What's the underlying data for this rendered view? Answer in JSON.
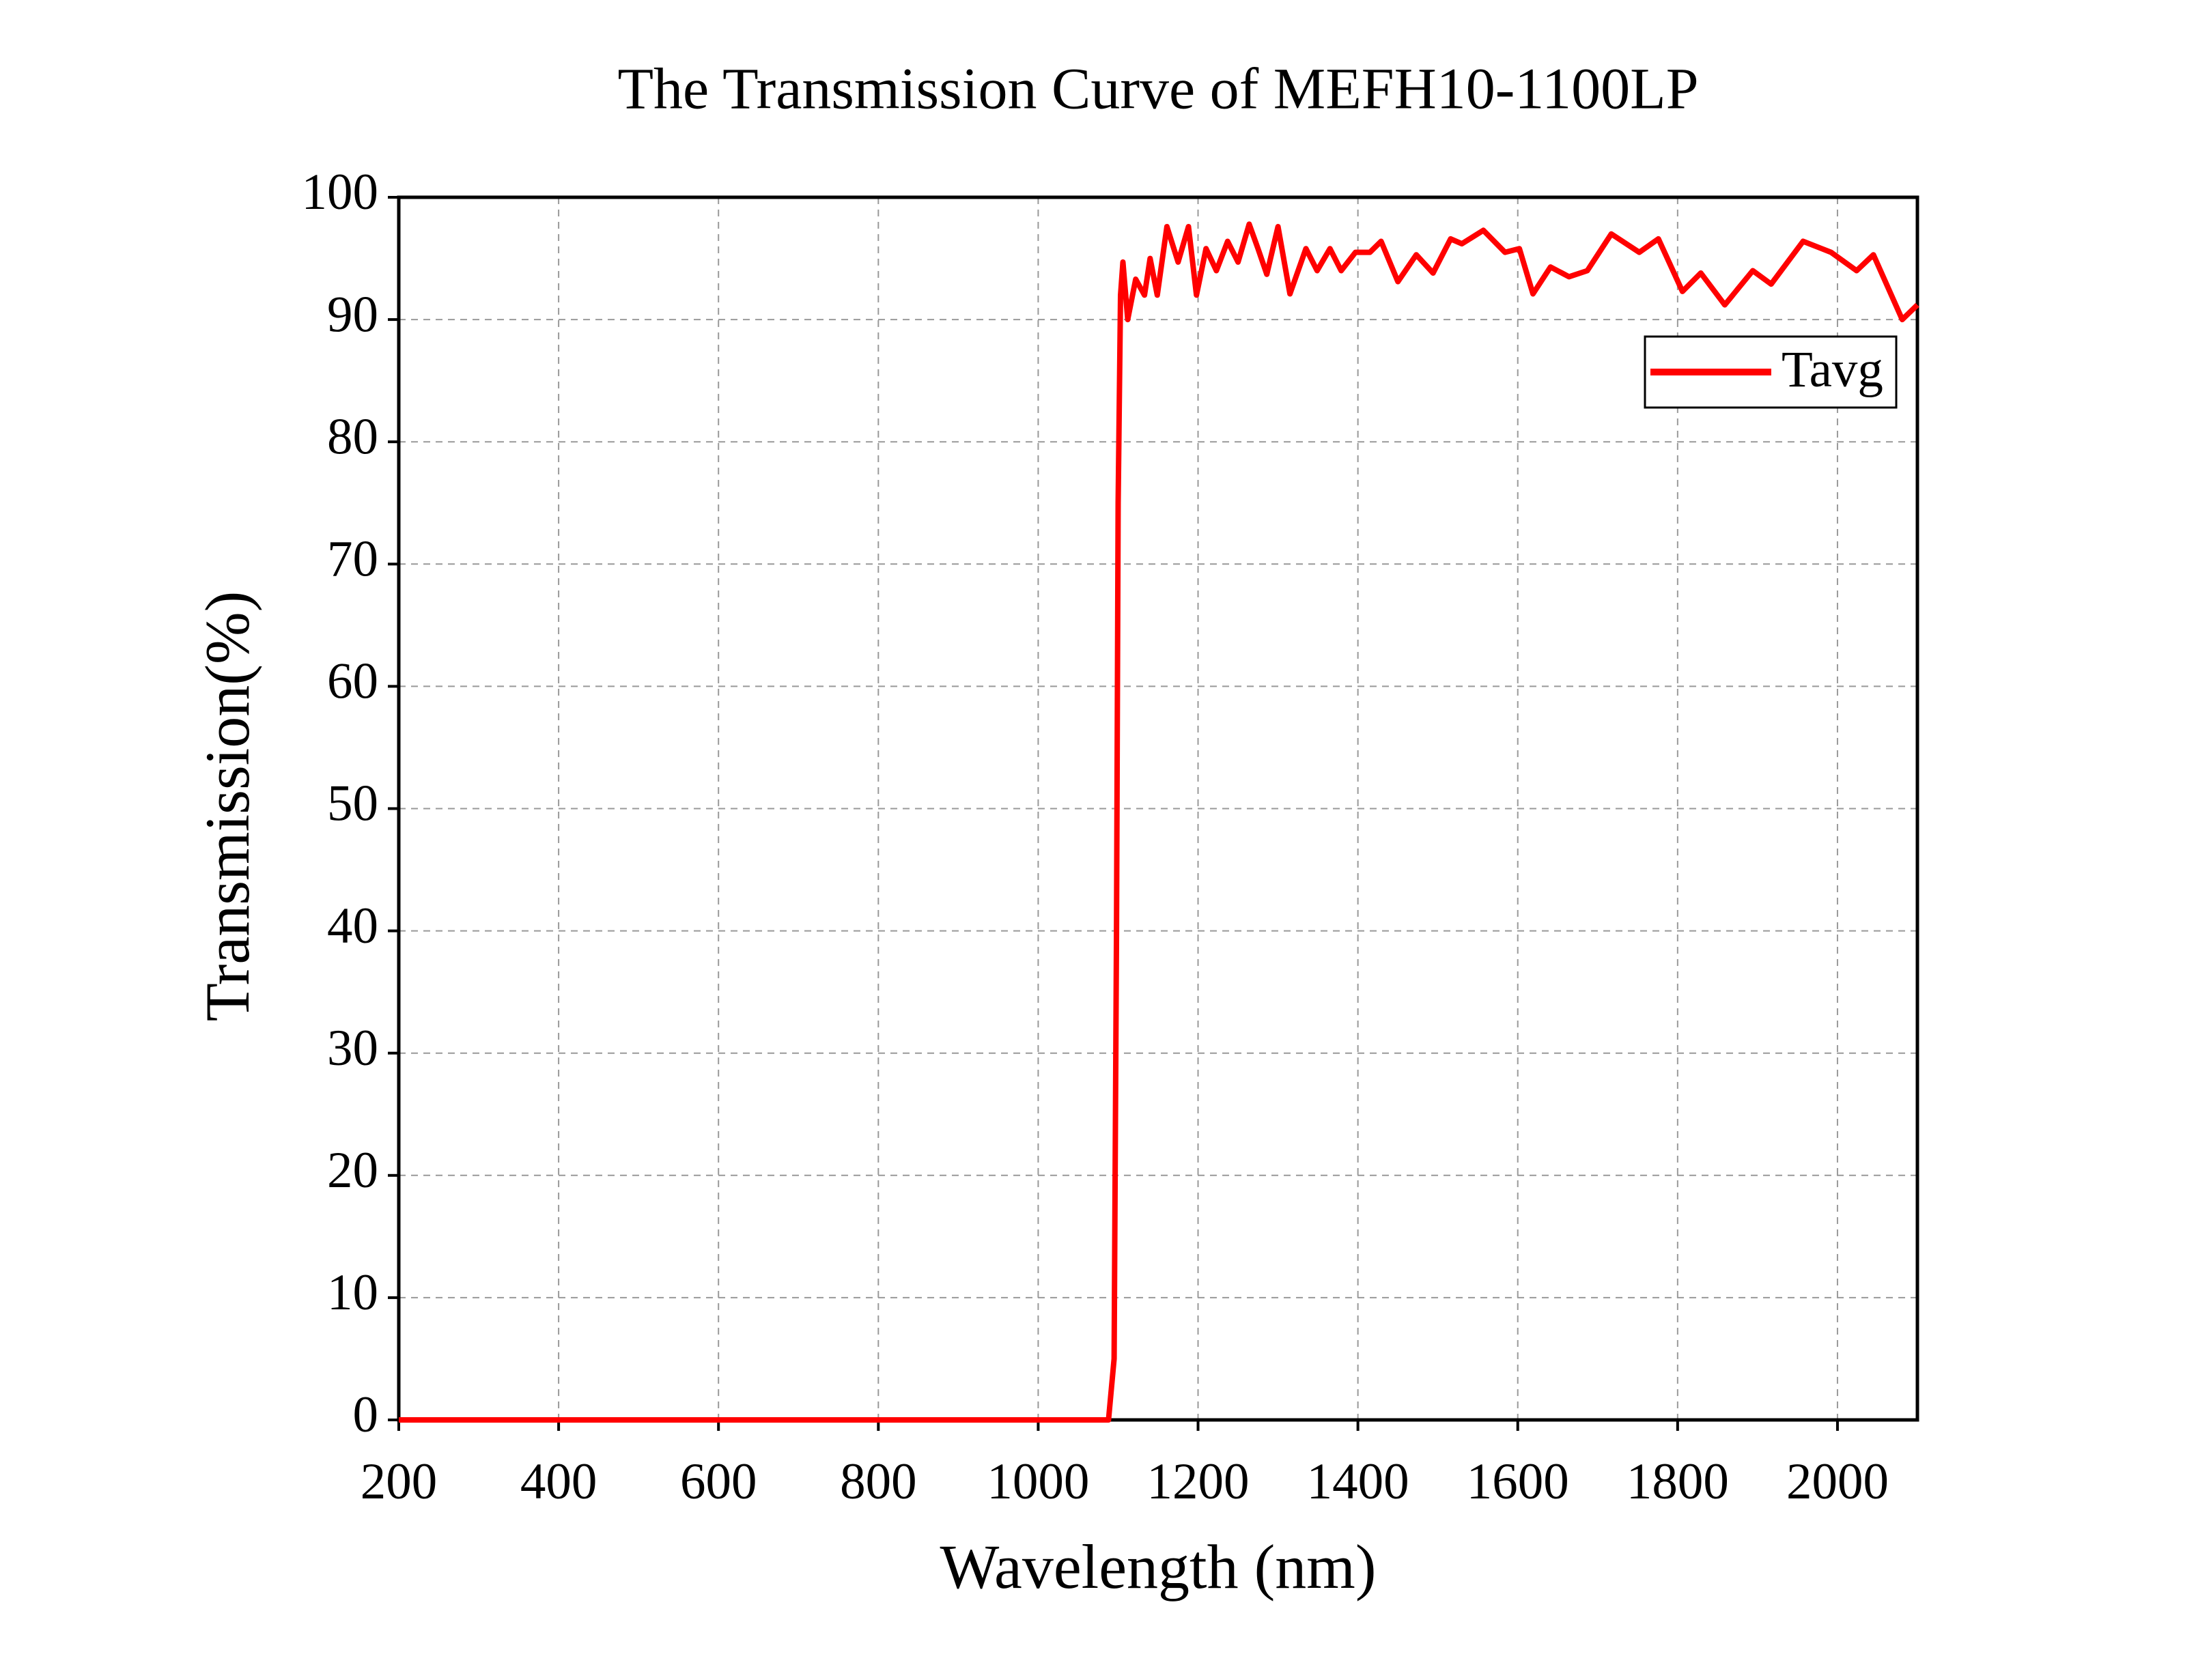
{
  "chart_data": {
    "type": "line",
    "title": "The Transmission Curve of MEFH10-1100LP",
    "x_label": "Wavelength (nm)",
    "y_label": "Transmission(%)",
    "xlim": [
      200,
      2100
    ],
    "xticks": [
      200,
      400,
      600,
      800,
      1000,
      1200,
      1400,
      1600,
      1800,
      2000
    ],
    "ylim": [
      0,
      100
    ],
    "yticks": [
      0,
      10,
      20,
      30,
      40,
      50,
      60,
      70,
      80,
      90,
      100
    ],
    "grid": true,
    "legend": "upper right",
    "x": [
      200,
      600,
      1000,
      1088,
      1095,
      1098,
      1100,
      1103,
      1106,
      1112,
      1122,
      1133,
      1140,
      1149,
      1161,
      1175,
      1188,
      1198,
      1210,
      1223,
      1237,
      1250,
      1264,
      1275,
      1286,
      1300,
      1315,
      1335,
      1349,
      1365,
      1379,
      1397,
      1415,
      1429,
      1450,
      1473,
      1494,
      1516,
      1530,
      1557,
      1584,
      1602,
      1619,
      1641,
      1664,
      1687,
      1717,
      1752,
      1776,
      1806,
      1829,
      1859,
      1894,
      1917,
      1957,
      1992,
      2024,
      2045,
      2081,
      2100
    ],
    "series": [
      {
        "name": "Tavg",
        "color": "#ff0000",
        "values": [
          0,
          0,
          0,
          0,
          5,
          40,
          75,
          92,
          94.7,
          90,
          93.3,
          92,
          95,
          92,
          97.6,
          94.7,
          97.6,
          92,
          95.8,
          94,
          96.4,
          94.7,
          97.8,
          95.8,
          93.7,
          97.6,
          92.1,
          95.8,
          94,
          95.8,
          94,
          95.5,
          95.5,
          96.4,
          93.1,
          95.3,
          93.8,
          96.6,
          96.2,
          97.3,
          95.5,
          95.8,
          92.1,
          94.3,
          93.5,
          94,
          97,
          95.5,
          96.6,
          92.3,
          93.8,
          91.2,
          94,
          92.9,
          96.4,
          95.5,
          94,
          95.3,
          90,
          91.2
        ]
      }
    ]
  }
}
